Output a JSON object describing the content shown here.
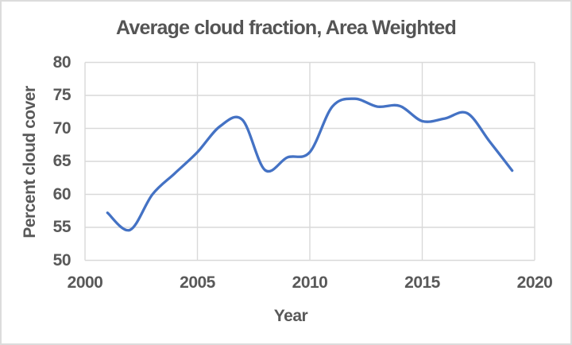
{
  "chart_data": {
    "type": "line",
    "title": "Average cloud fraction, Area Weighted",
    "xlabel": "Year",
    "ylabel": "Percent cloud cover",
    "x": [
      2001,
      2002,
      2003,
      2004,
      2005,
      2006,
      2007,
      2008,
      2009,
      2010,
      2011,
      2012,
      2013,
      2014,
      2015,
      2016,
      2017,
      2018,
      2019
    ],
    "values": [
      57.2,
      54.6,
      60.0,
      63.2,
      66.4,
      70.3,
      71.3,
      63.7,
      65.6,
      66.4,
      73.3,
      74.5,
      73.3,
      73.4,
      71.1,
      71.5,
      72.3,
      68.0,
      63.6
    ],
    "xlim": [
      2000,
      2020
    ],
    "ylim": [
      50,
      80
    ],
    "xticks": [
      2000,
      2005,
      2010,
      2015,
      2020
    ],
    "yticks": [
      50,
      55,
      60,
      65,
      70,
      75,
      80
    ],
    "grid": true,
    "legend": false,
    "smooth": true,
    "series_name": "cloud-fraction",
    "line_color": "#4472C4",
    "grid_color": "#D9D9D9",
    "text_color": "#595959",
    "title_color": "#545454",
    "background_color": "#FFFFFF"
  }
}
